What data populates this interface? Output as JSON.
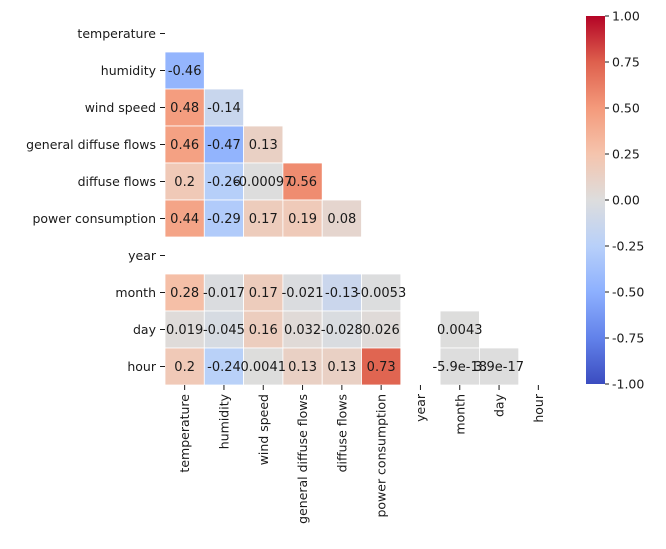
{
  "chart_data": {
    "type": "heatmap",
    "title": "",
    "xlabel": "",
    "ylabel": "",
    "variables": [
      "temperature",
      "humidity",
      "wind speed",
      "general diffuse flows",
      "diffuse flows",
      "power consumption",
      "year",
      "month",
      "day",
      "hour"
    ],
    "mask": "upper-triangle-including-diagonal",
    "colormap": "coolwarm",
    "vmin": -1,
    "vmax": 1,
    "colorbar_ticks": [
      "-1.00",
      "-0.75",
      "-0.50",
      "-0.25",
      "0.00",
      "0.25",
      "0.50",
      "0.75",
      "1.00"
    ],
    "cells": [
      {
        "row": 1,
        "col": 0,
        "value": -0.46,
        "label": "-0.46"
      },
      {
        "row": 2,
        "col": 0,
        "value": 0.48,
        "label": "0.48"
      },
      {
        "row": 2,
        "col": 1,
        "value": -0.14,
        "label": "-0.14"
      },
      {
        "row": 3,
        "col": 0,
        "value": 0.46,
        "label": "0.46"
      },
      {
        "row": 3,
        "col": 1,
        "value": -0.47,
        "label": "-0.47"
      },
      {
        "row": 3,
        "col": 2,
        "value": 0.13,
        "label": "0.13"
      },
      {
        "row": 4,
        "col": 0,
        "value": 0.2,
        "label": "0.2"
      },
      {
        "row": 4,
        "col": 1,
        "value": -0.26,
        "label": "-0.26"
      },
      {
        "row": 4,
        "col": 2,
        "value": -0.00097,
        "label": "-0.00097"
      },
      {
        "row": 4,
        "col": 3,
        "value": 0.56,
        "label": "0.56"
      },
      {
        "row": 5,
        "col": 0,
        "value": 0.44,
        "label": "0.44"
      },
      {
        "row": 5,
        "col": 1,
        "value": -0.29,
        "label": "-0.29"
      },
      {
        "row": 5,
        "col": 2,
        "value": 0.17,
        "label": "0.17"
      },
      {
        "row": 5,
        "col": 3,
        "value": 0.19,
        "label": "0.19"
      },
      {
        "row": 5,
        "col": 4,
        "value": 0.08,
        "label": "0.08"
      },
      {
        "row": 7,
        "col": 0,
        "value": 0.28,
        "label": "0.28"
      },
      {
        "row": 7,
        "col": 1,
        "value": -0.017,
        "label": "-0.017"
      },
      {
        "row": 7,
        "col": 2,
        "value": 0.17,
        "label": "0.17"
      },
      {
        "row": 7,
        "col": 3,
        "value": -0.021,
        "label": "-0.021"
      },
      {
        "row": 7,
        "col": 4,
        "value": -0.13,
        "label": "-0.13"
      },
      {
        "row": 7,
        "col": 5,
        "value": -0.0053,
        "label": "-0.0053"
      },
      {
        "row": 8,
        "col": 0,
        "value": 0.019,
        "label": "0.019"
      },
      {
        "row": 8,
        "col": 1,
        "value": -0.045,
        "label": "-0.045"
      },
      {
        "row": 8,
        "col": 2,
        "value": 0.16,
        "label": "0.16"
      },
      {
        "row": 8,
        "col": 3,
        "value": 0.032,
        "label": "0.032"
      },
      {
        "row": 8,
        "col": 4,
        "value": -0.028,
        "label": "-0.028"
      },
      {
        "row": 8,
        "col": 5,
        "value": 0.026,
        "label": "0.026"
      },
      {
        "row": 8,
        "col": 7,
        "value": 0.0043,
        "label": "0.0043"
      },
      {
        "row": 9,
        "col": 0,
        "value": 0.2,
        "label": "0.2"
      },
      {
        "row": 9,
        "col": 1,
        "value": -0.24,
        "label": "-0.24"
      },
      {
        "row": 9,
        "col": 2,
        "value": 0.0041,
        "label": "0.0041"
      },
      {
        "row": 9,
        "col": 3,
        "value": 0.13,
        "label": "0.13"
      },
      {
        "row": 9,
        "col": 4,
        "value": 0.13,
        "label": "0.13"
      },
      {
        "row": 9,
        "col": 5,
        "value": 0.73,
        "label": "0.73"
      },
      {
        "row": 9,
        "col": 7,
        "value": -5.9e-18,
        "label": "-5.9e-18"
      },
      {
        "row": 9,
        "col": 8,
        "value": 3.9e-17,
        "label": "3.9e-17"
      }
    ]
  }
}
